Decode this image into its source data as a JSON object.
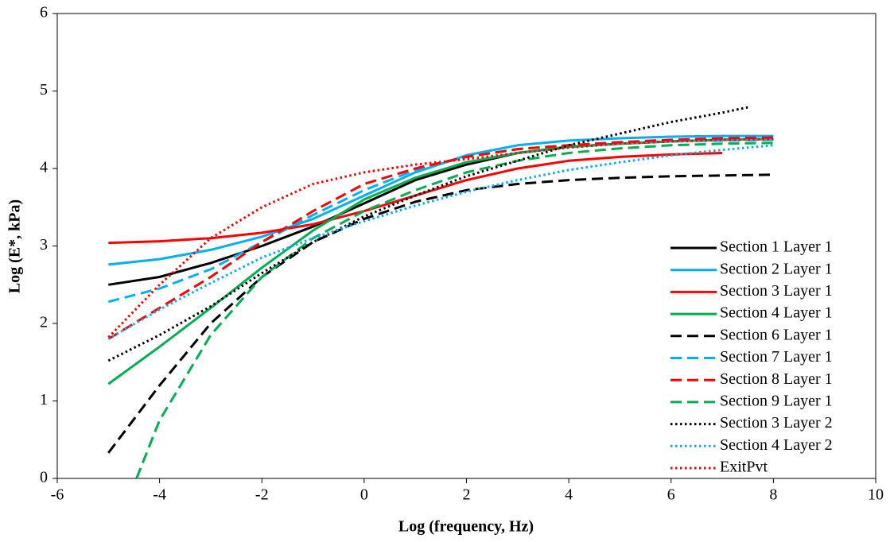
{
  "chart_data": {
    "type": "line",
    "x_label": "Log (frequency, Hz)",
    "y_label": "Log (E*, kPa)",
    "xlim": [
      -6,
      10
    ],
    "xticks": [
      -6,
      -4,
      -2,
      0,
      2,
      4,
      6,
      8,
      10
    ],
    "ylim": [
      0,
      6
    ],
    "yticks": [
      0,
      1,
      2,
      3,
      4,
      5,
      6
    ],
    "legend": "lower right",
    "series": [
      {
        "name": "Section 1 Layer 1",
        "color": "#000000",
        "dash": "solid",
        "x": [
          -5,
          -4,
          -3,
          -2,
          -1,
          0,
          1,
          2,
          3,
          4,
          5,
          6,
          7,
          8
        ],
        "values": [
          2.5,
          2.6,
          2.78,
          3.0,
          3.25,
          3.55,
          3.85,
          4.05,
          4.2,
          4.28,
          4.32,
          4.35,
          4.37,
          4.38
        ]
      },
      {
        "name": "Section 2 Layer 1",
        "color": "#00b0f0",
        "dash": "solid",
        "x": [
          -5,
          -4,
          -3,
          -2,
          -1,
          0,
          1,
          2,
          3,
          4,
          5,
          6,
          7,
          8
        ],
        "values": [
          2.76,
          2.83,
          2.95,
          3.12,
          3.35,
          3.65,
          3.95,
          4.17,
          4.3,
          4.36,
          4.39,
          4.41,
          4.42,
          4.42
        ]
      },
      {
        "name": "Section 3 Layer 1",
        "color": "#ff0000",
        "dash": "solid",
        "x": [
          -5,
          -4,
          -3,
          -2,
          -1,
          0,
          1,
          2,
          3,
          4,
          5,
          6,
          7
        ],
        "values": [
          3.04,
          3.06,
          3.1,
          3.17,
          3.28,
          3.45,
          3.65,
          3.85,
          4.0,
          4.1,
          4.15,
          4.18,
          4.2
        ]
      },
      {
        "name": "Section 4 Layer 1",
        "color": "#00b050",
        "dash": "solid",
        "x": [
          -5,
          -4,
          -3,
          -2,
          -1,
          0,
          1,
          2,
          3,
          4,
          5,
          6,
          7,
          8
        ],
        "values": [
          1.22,
          1.7,
          2.2,
          2.72,
          3.2,
          3.6,
          3.88,
          4.08,
          4.2,
          4.28,
          4.32,
          4.35,
          4.37,
          4.38
        ]
      },
      {
        "name": "Section 6 Layer 1",
        "color": "#000000",
        "dash": "dashed",
        "x": [
          -5,
          -4,
          -3,
          -2,
          -1,
          0,
          1,
          2,
          3,
          4,
          5,
          6,
          7,
          8
        ],
        "values": [
          0.33,
          1.2,
          2.0,
          2.6,
          3.05,
          3.35,
          3.57,
          3.72,
          3.8,
          3.85,
          3.88,
          3.9,
          3.91,
          3.92
        ]
      },
      {
        "name": "Section 7 Layer 1",
        "color": "#00b0f0",
        "dash": "dashed",
        "x": [
          -5,
          -4,
          -3,
          -2,
          -1,
          0,
          1,
          2,
          3,
          4,
          5,
          6,
          7,
          8
        ],
        "values": [
          2.28,
          2.45,
          2.7,
          3.05,
          3.4,
          3.72,
          3.98,
          4.15,
          4.25,
          4.3,
          4.33,
          4.35,
          4.36,
          4.37
        ]
      },
      {
        "name": "Section 8 Layer 1",
        "color": "#ff0000",
        "dash": "dashed",
        "x": [
          -5,
          -4,
          -3,
          -2,
          -1,
          0,
          1,
          2,
          3,
          4,
          5,
          6,
          7,
          8
        ],
        "values": [
          1.8,
          2.2,
          2.6,
          3.05,
          3.45,
          3.8,
          4.0,
          4.15,
          4.25,
          4.3,
          4.34,
          4.37,
          4.39,
          4.4
        ]
      },
      {
        "name": "Section 9 Layer 1",
        "color": "#00b050",
        "dash": "dashed",
        "x": [
          -4.45,
          -4,
          -3,
          -2,
          -1,
          0,
          1,
          2,
          3,
          4,
          5,
          6,
          7,
          8
        ],
        "values": [
          0,
          0.75,
          1.85,
          2.6,
          3.1,
          3.45,
          3.72,
          3.95,
          4.1,
          4.2,
          4.26,
          4.3,
          4.32,
          4.33
        ]
      },
      {
        "name": "Section 3 Layer 2",
        "color": "#000000",
        "dash": "dotted",
        "x": [
          -5,
          -4,
          -3,
          -2,
          -1,
          0,
          1,
          2,
          3,
          4,
          5,
          6,
          7,
          7.5
        ],
        "values": [
          1.52,
          1.85,
          2.22,
          2.65,
          3.05,
          3.38,
          3.65,
          3.9,
          4.1,
          4.3,
          4.45,
          4.6,
          4.72,
          4.79
        ]
      },
      {
        "name": "Section 4 Layer 2",
        "color": "#00b0f0",
        "dash": "dotted",
        "x": [
          -5,
          -4,
          -3,
          -2,
          -1,
          0,
          1,
          2,
          3,
          4,
          5,
          6,
          7,
          8
        ],
        "values": [
          1.8,
          2.18,
          2.52,
          2.85,
          3.1,
          3.32,
          3.52,
          3.7,
          3.85,
          3.98,
          4.08,
          4.17,
          4.24,
          4.3
        ]
      },
      {
        "name": "ExitPvt",
        "color": "#ff0000",
        "dash": "dotted",
        "x": [
          -5,
          -4,
          -3,
          -2,
          -1,
          0,
          1,
          2,
          3,
          4,
          5,
          6,
          7,
          8
        ],
        "values": [
          1.82,
          2.5,
          3.1,
          3.5,
          3.8,
          3.95,
          4.05,
          4.12,
          4.2,
          4.27,
          4.32,
          4.35,
          4.37,
          4.38
        ]
      }
    ]
  }
}
